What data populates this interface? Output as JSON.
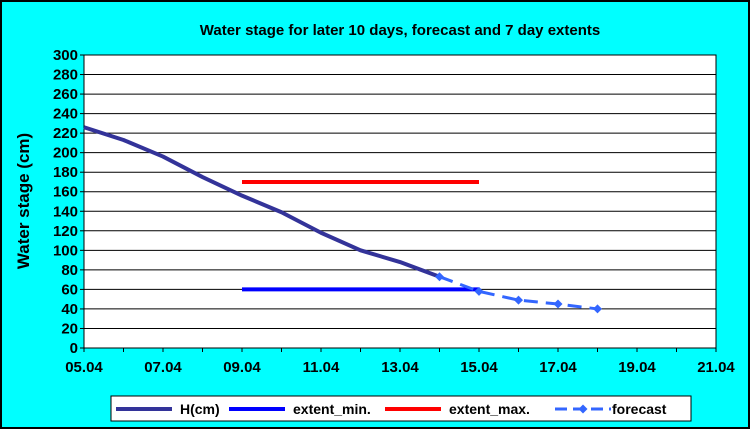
{
  "chart_data": {
    "type": "line",
    "title": "Water stage for later 10 days, forecast and 7 day extents",
    "ylabel": "Water stage (cm)",
    "xlabel": "",
    "ylim": [
      0,
      300
    ],
    "yticks": [
      "0",
      "20",
      "40",
      "60",
      "80",
      "100",
      "120",
      "140",
      "160",
      "180",
      "200",
      "220",
      "240",
      "260",
      "280",
      "300"
    ],
    "xlim": [
      0,
      16
    ],
    "xticks": [
      "05.04",
      "07.04",
      "09.04",
      "11.04",
      "13.04",
      "15.04",
      "17.04",
      "19.04",
      "21.04"
    ],
    "grid": "horizontal",
    "legend_position": "bottom",
    "series": [
      {
        "name": "H(cm)",
        "color": "#333399",
        "style": "solid",
        "marker": "none",
        "x": [
          0,
          1,
          2,
          3,
          4,
          5,
          6,
          7,
          8,
          9
        ],
        "y": [
          226,
          213,
          196,
          175,
          156,
          139,
          118,
          100,
          88,
          73
        ]
      },
      {
        "name": "extent_min.",
        "color": "#0000ff",
        "style": "solid",
        "marker": "none",
        "x": [
          4,
          10
        ],
        "y": [
          60,
          60
        ]
      },
      {
        "name": "extent_max.",
        "color": "#ff0000",
        "style": "solid",
        "marker": "none",
        "x": [
          4,
          10
        ],
        "y": [
          170,
          170
        ]
      },
      {
        "name": "forecast",
        "color": "#3366ff",
        "style": "dashed",
        "marker": "diamond",
        "x": [
          9,
          10,
          11,
          12,
          13
        ],
        "y": [
          73,
          58,
          49,
          45,
          40
        ]
      }
    ]
  }
}
